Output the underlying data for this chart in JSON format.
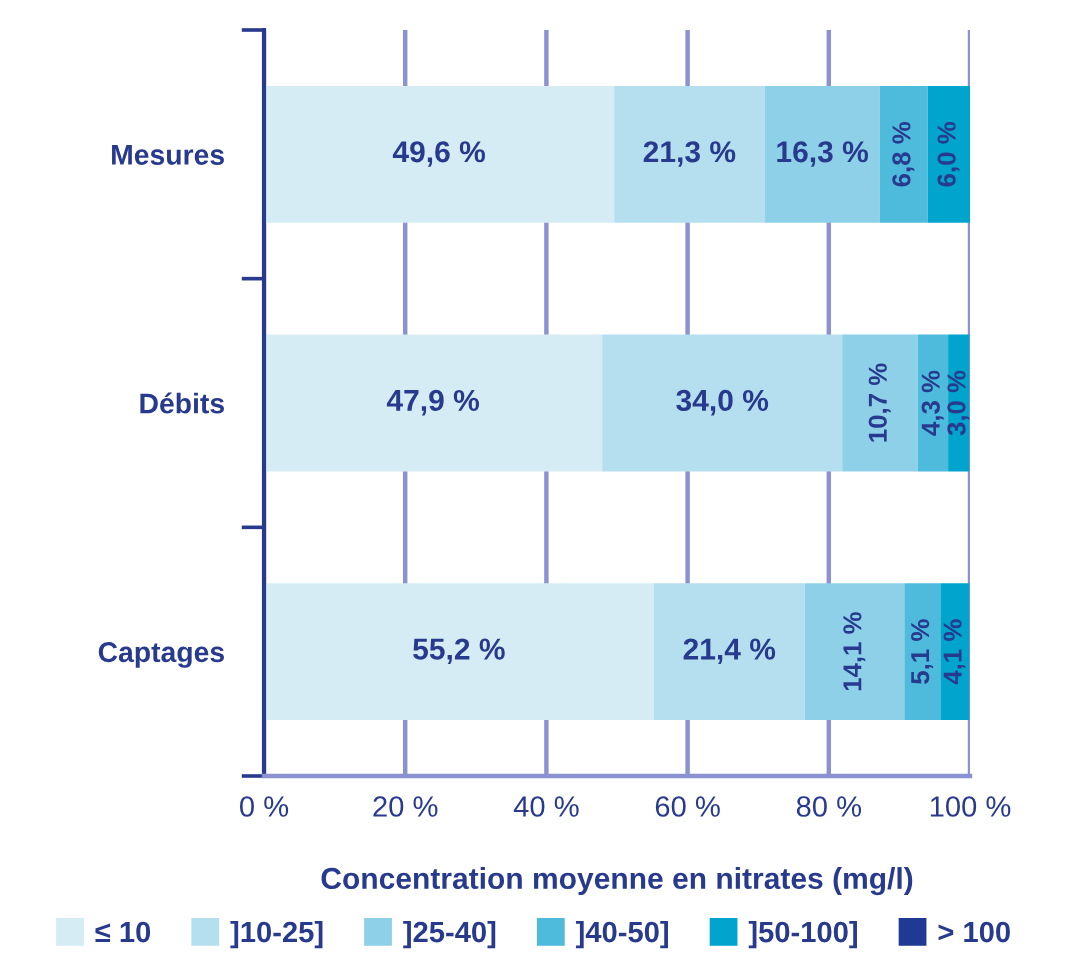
{
  "chart_data": {
    "type": "bar",
    "orientation": "horizontal",
    "stacked": true,
    "categories": [
      "Mesures",
      "Débits",
      "Captages"
    ],
    "xlabel": "Concentration moyenne en nitrates (mg/l)",
    "xlim": [
      0,
      100
    ],
    "xticks": [
      {
        "value": 0,
        "label": "0 %"
      },
      {
        "value": 20,
        "label": "20 %"
      },
      {
        "value": 40,
        "label": "40 %"
      },
      {
        "value": 60,
        "label": "60 %"
      },
      {
        "value": 80,
        "label": "80 %"
      },
      {
        "value": 100,
        "label": "100 %"
      }
    ],
    "grid": "x",
    "legend": "bottom",
    "series": [
      {
        "name": "≤ 10",
        "color": "#d6ecf5",
        "values": [
          49.6,
          47.9,
          55.2
        ],
        "value_labels": [
          "49,6 %",
          "47,9 %",
          "55,2 %"
        ]
      },
      {
        "name": "]10-25]",
        "color": "#b5dfef",
        "values": [
          21.3,
          34.0,
          21.4
        ],
        "value_labels": [
          "21,3 %",
          "34,0 %",
          "21,4 %"
        ]
      },
      {
        "name": "]25-40]",
        "color": "#8dd0e7",
        "values": [
          16.3,
          10.7,
          14.1
        ],
        "value_labels": [
          "16,3 %",
          "10,7 %",
          "14,1 %"
        ]
      },
      {
        "name": "]40-50]",
        "color": "#4fbbdc",
        "values": [
          6.8,
          4.3,
          5.1
        ],
        "value_labels": [
          "6,8 %",
          "4,3 %",
          "5,1 %"
        ]
      },
      {
        "name": "]50-100]",
        "color": "#00a4cc",
        "values": [
          6.0,
          3.0,
          4.1
        ],
        "value_labels": [
          "6,0 %",
          "3,0 %",
          "4,1 %"
        ]
      },
      {
        "name": "> 100",
        "color": "#1f3a93",
        "values": [
          null,
          null,
          null
        ]
      }
    ]
  }
}
